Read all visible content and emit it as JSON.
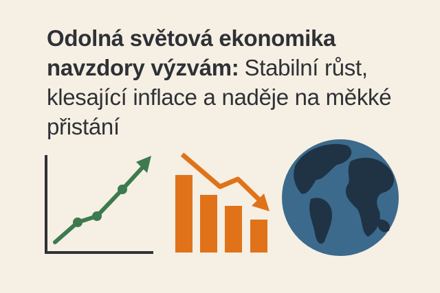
{
  "headline": {
    "bold": "Odolná světová ekonomika navzdory výzvám:",
    "regular": "Stabilní růst, klesající inflace a naděje na měkké přistání"
  }
}
